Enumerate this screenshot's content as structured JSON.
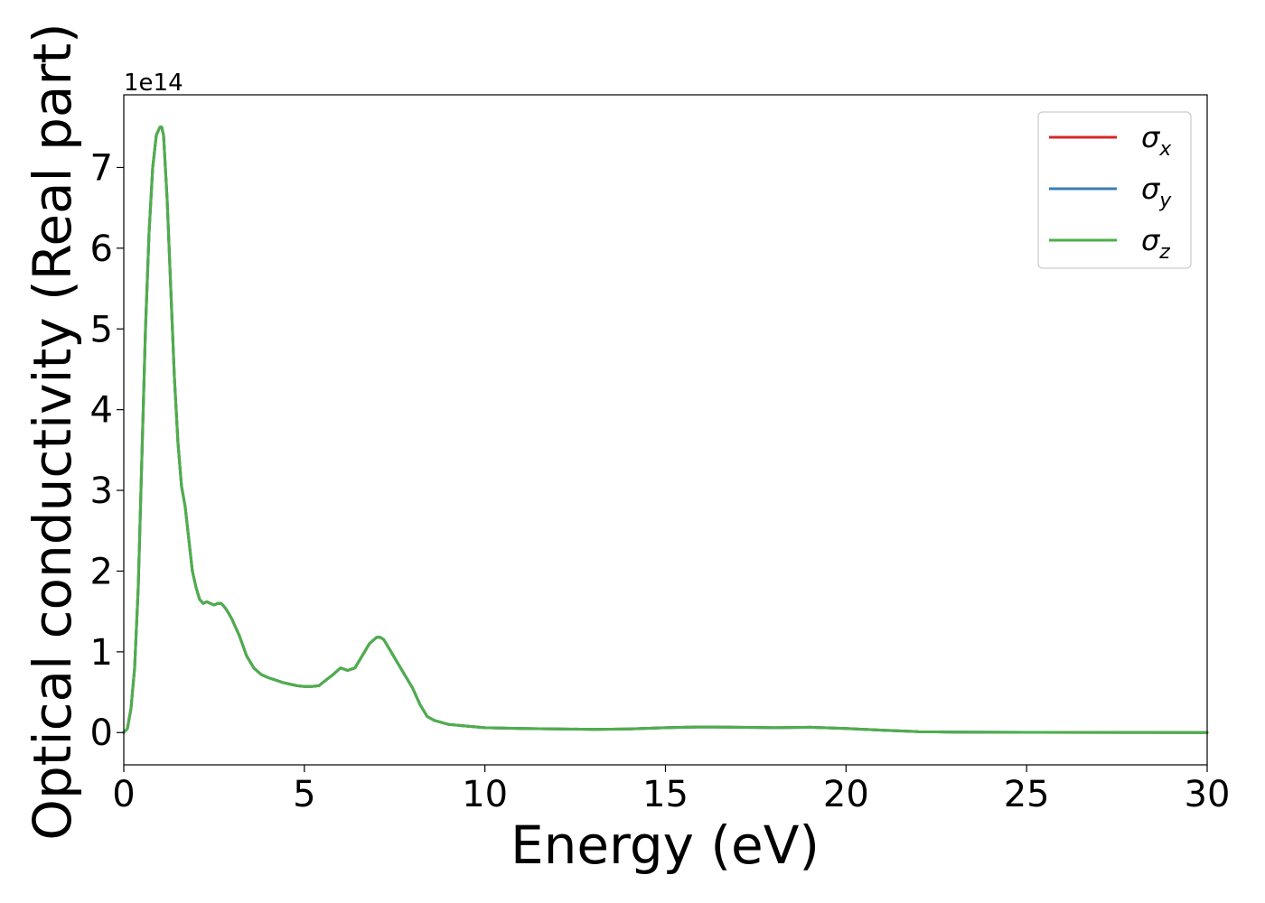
{
  "chart_data": {
    "type": "line",
    "xlabel": "Energy (eV)",
    "ylabel": "Optical conductivity (Real part)",
    "y_offset_label": "1e14",
    "xlim": [
      0,
      30
    ],
    "ylim": [
      -0.4,
      7.9
    ],
    "x_ticks": [
      0,
      5,
      10,
      15,
      20,
      25,
      30
    ],
    "y_ticks": [
      0,
      1,
      2,
      3,
      4,
      5,
      6,
      7
    ],
    "grid": false,
    "legend_position": "top-right",
    "series": [
      {
        "name": "σx",
        "symbol": "σ",
        "subscript": "x",
        "color": "#d62728"
      },
      {
        "name": "σy",
        "symbol": "σ",
        "subscript": "y",
        "color": "#377eb8"
      },
      {
        "name": "σz",
        "symbol": "σ",
        "subscript": "z",
        "color": "#4daf4a"
      }
    ],
    "x": [
      0,
      0.1,
      0.2,
      0.3,
      0.4,
      0.5,
      0.6,
      0.7,
      0.8,
      0.9,
      1.0,
      1.05,
      1.1,
      1.2,
      1.3,
      1.4,
      1.5,
      1.6,
      1.7,
      1.8,
      1.9,
      2.0,
      2.1,
      2.2,
      2.3,
      2.4,
      2.5,
      2.6,
      2.7,
      2.8,
      2.9,
      3.0,
      3.2,
      3.4,
      3.6,
      3.8,
      4.0,
      4.2,
      4.4,
      4.6,
      4.8,
      5.0,
      5.2,
      5.4,
      5.6,
      5.8,
      6.0,
      6.2,
      6.4,
      6.6,
      6.8,
      7.0,
      7.1,
      7.2,
      7.4,
      7.6,
      7.8,
      8.0,
      8.2,
      8.4,
      8.6,
      9.0,
      9.5,
      10.0,
      11.0,
      12.0,
      13.0,
      14.0,
      15.0,
      16.0,
      17.0,
      18.0,
      19.0,
      20.0,
      21.0,
      22.0,
      23.0,
      25.0,
      28.0,
      30.0
    ],
    "values": [
      0.0,
      0.05,
      0.3,
      0.8,
      1.8,
      3.4,
      5.0,
      6.2,
      7.0,
      7.4,
      7.5,
      7.5,
      7.4,
      6.6,
      5.5,
      4.4,
      3.6,
      3.05,
      2.8,
      2.4,
      2.0,
      1.8,
      1.65,
      1.6,
      1.62,
      1.6,
      1.58,
      1.6,
      1.6,
      1.55,
      1.48,
      1.4,
      1.2,
      0.95,
      0.8,
      0.72,
      0.68,
      0.65,
      0.62,
      0.6,
      0.58,
      0.57,
      0.57,
      0.58,
      0.65,
      0.72,
      0.8,
      0.77,
      0.8,
      0.95,
      1.1,
      1.18,
      1.18,
      1.15,
      1.0,
      0.85,
      0.7,
      0.55,
      0.35,
      0.2,
      0.15,
      0.1,
      0.08,
      0.06,
      0.05,
      0.045,
      0.04,
      0.045,
      0.06,
      0.07,
      0.065,
      0.06,
      0.065,
      0.05,
      0.03,
      0.01,
      0.005,
      0.003,
      0.002,
      0.001
    ]
  }
}
